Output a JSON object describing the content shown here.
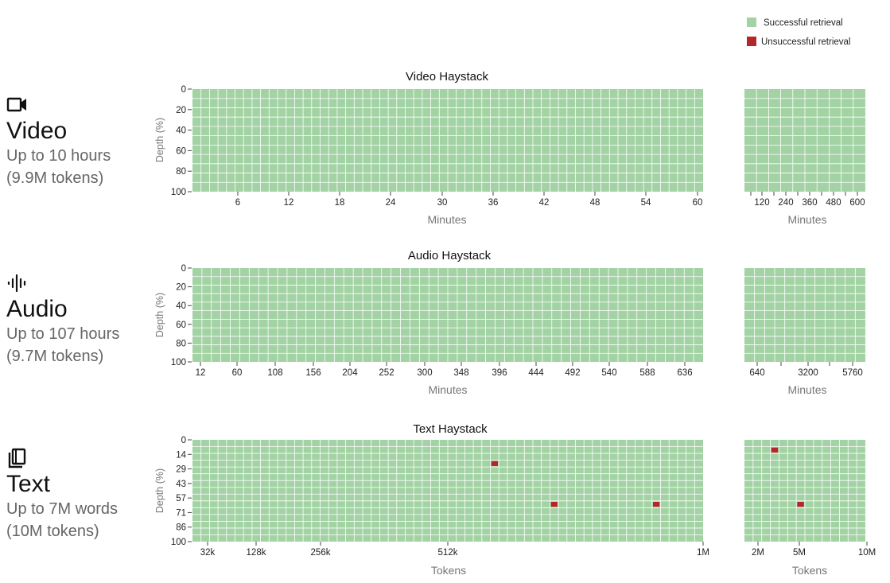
{
  "colors": {
    "success": "#a3d3a4",
    "failure": "#b3262a",
    "grid_line": "#ffffff"
  },
  "legend": {
    "success_label": "Successful retrieval",
    "failure_label": "Unsuccessful retrieval"
  },
  "modalities": [
    {
      "icon": "video-camera-icon",
      "name": "Video",
      "line1": "Up to 10 hours",
      "line2": "(9.9M tokens)"
    },
    {
      "icon": "audio-waveform-icon",
      "name": "Audio",
      "line1": "Up to 107 hours",
      "line2": "(9.7M tokens)"
    },
    {
      "icon": "book-stack-icon",
      "name": "Text",
      "line1": "Up to 7M words",
      "line2": "(10M tokens)"
    }
  ],
  "chart_data": [
    {
      "type": "heatmap",
      "title": "Video Haystack",
      "ylabel": "Depth (%)",
      "y_ticks": [
        "0",
        "20",
        "40",
        "60",
        "80",
        "100"
      ],
      "failures_note": "all cells successful",
      "panels": [
        {
          "xlabel": "Minutes",
          "x_ticks": [
            "6",
            "12",
            "18",
            "24",
            "30",
            "36",
            "42",
            "48",
            "54",
            "60"
          ],
          "grid": {
            "cols": 60,
            "rows": 11
          },
          "failures": []
        },
        {
          "xlabel": "Minutes",
          "x_ticks": [
            "120",
            "240",
            "360",
            "480",
            "600"
          ],
          "grid": {
            "cols": 10,
            "rows": 11
          },
          "failures": []
        }
      ]
    },
    {
      "type": "heatmap",
      "title": "Audio Haystack",
      "ylabel": "Depth (%)",
      "y_ticks": [
        "0",
        "20",
        "40",
        "60",
        "80",
        "100"
      ],
      "panels": [
        {
          "xlabel": "Minutes",
          "x_ticks": [
            "12",
            "60",
            "108",
            "156",
            "204",
            "252",
            "300",
            "348",
            "396",
            "444",
            "492",
            "540",
            "588",
            "636"
          ],
          "grid": {
            "cols": 54,
            "rows": 11
          },
          "failures": []
        },
        {
          "xlabel": "Minutes",
          "x_ticks": [
            "640",
            "3200",
            "5760"
          ],
          "grid": {
            "cols": 12,
            "rows": 11
          },
          "failures": []
        }
      ]
    },
    {
      "type": "heatmap",
      "title": "Text Haystack",
      "ylabel": "Depth (%)",
      "y_ticks": [
        "0",
        "14",
        "29",
        "43",
        "57",
        "71",
        "86",
        "100"
      ],
      "panels": [
        {
          "xlabel": "Tokens",
          "x_ticks": [
            "32k",
            "128k",
            "256k",
            "512k",
            "1M"
          ],
          "grid": {
            "cols": 60,
            "rows": 15
          },
          "failures": [
            {
              "depth": 29,
              "tokens": "~570k"
            },
            {
              "depth": 71,
              "tokens": "~680k"
            },
            {
              "depth": 71,
              "tokens": "~870k"
            }
          ]
        },
        {
          "xlabel": "Tokens",
          "x_ticks": [
            "2M",
            "5M",
            "10M"
          ],
          "grid": {
            "cols": 14,
            "rows": 15
          },
          "failures": [
            {
              "depth": 14,
              "tokens": "~3.7M"
            },
            {
              "depth": 57,
              "tokens": "~6.5M"
            }
          ]
        }
      ]
    }
  ]
}
